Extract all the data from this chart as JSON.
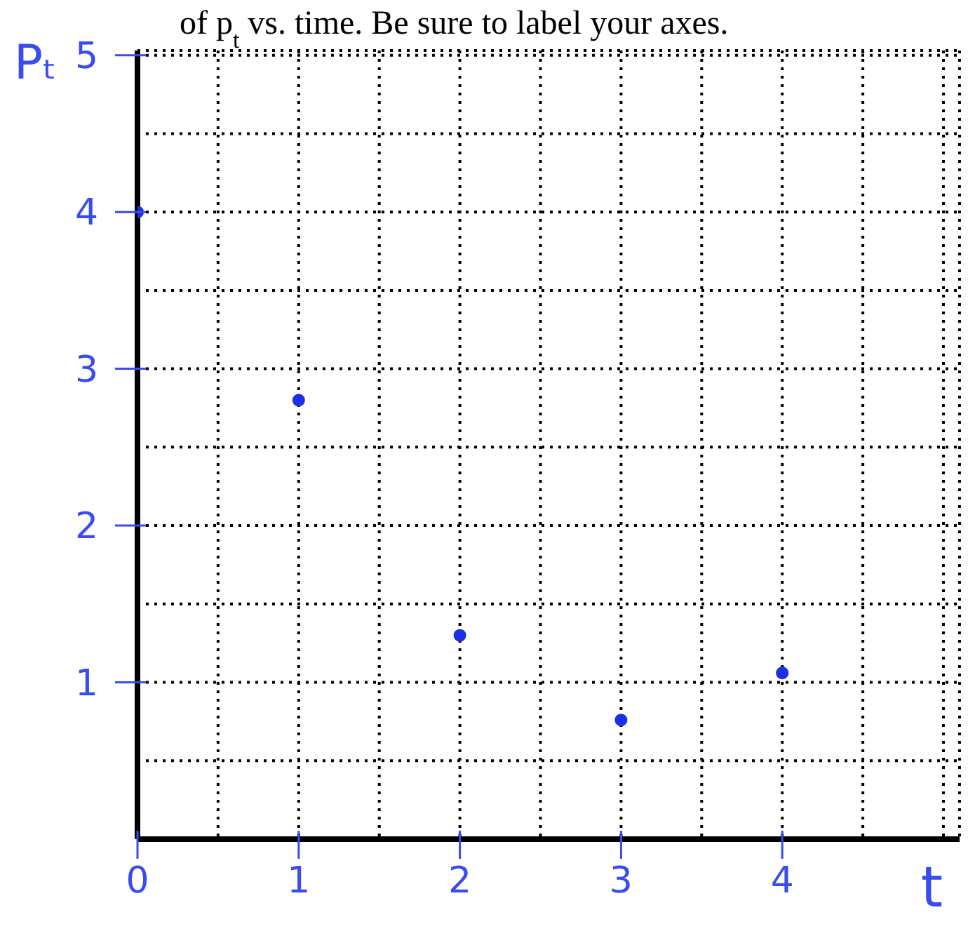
{
  "chart_data": {
    "type": "scatter",
    "annotations": [
      "of p$_{t}$ vs. time. Be sure to label your axes."
    ],
    "xlabel": "t",
    "ylabel": "Pₜ",
    "x": [
      0,
      1,
      2,
      3,
      4
    ],
    "series": [
      {
        "color": "#1a2fe6",
        "values": [
          4.0,
          2.8,
          1.3,
          0.76,
          1.06
        ]
      }
    ],
    "xlim": [
      0,
      5.1
    ],
    "ylim": [
      0,
      5.03
    ],
    "xticks": [
      0,
      {
        "value": 0.5,
        "label": null
      },
      1,
      {
        "value": 1.5,
        "label": null
      },
      2,
      {
        "value": 2.5,
        "label": null
      },
      3,
      {
        "value": 3.5,
        "label": null
      },
      4,
      {
        "value": 4.5,
        "label": null
      },
      {
        "value": 5,
        "label": null
      }
    ],
    "yticks": [
      {
        "value": 0,
        "label": null
      },
      {
        "value": 0.5,
        "label": null
      },
      1,
      {
        "value": 1.5,
        "label": null
      },
      2,
      {
        "value": 2.5,
        "label": null
      },
      3,
      {
        "value": 3.5,
        "label": null
      },
      4,
      {
        "value": 4.5,
        "label": null
      },
      5
    ],
    "grid": true,
    "marker": "circle",
    "legend": false
  }
}
